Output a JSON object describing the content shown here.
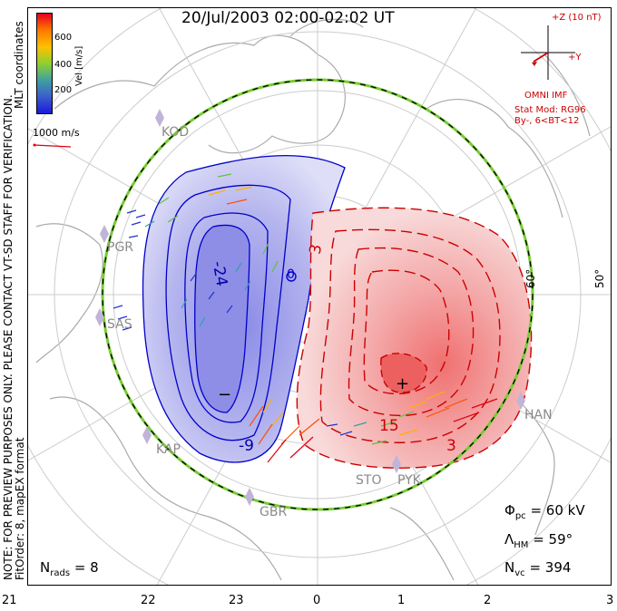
{
  "header": {
    "title": "20/Jul/2003 02:00-02:02 UT"
  },
  "colorbar": {
    "unit_label": "Vel [m/s]",
    "ticks": [
      "600",
      "400",
      "200"
    ],
    "colors": [
      "#e6001e",
      "#ff7800",
      "#ffc000",
      "#8fd030",
      "#40a0a0",
      "#3a5ecc",
      "#1a1adc"
    ]
  },
  "coord_label": "MLT coordinates",
  "scale_vector": {
    "label": "1000 m/s"
  },
  "note": {
    "line1": "NOTE: FOR PREVIEW PURPOSES ONLY. PLEASE CONTACT VT-SD STAFF FOR VERIFICATION.",
    "line2": "FitOrder: 8,  mapEX format"
  },
  "imf": {
    "z_label": "+Z (10 nT)",
    "y_label": "+Y",
    "source": "OMNI IMF",
    "model_line1": "Stat Mod: RG96",
    "model_line2": "By-, 6<BT<12"
  },
  "latitude_labels": {
    "inner": "60°",
    "outer": "50°"
  },
  "mlt_labels": [
    "21",
    "22",
    "23",
    "0",
    "1",
    "2",
    "3"
  ],
  "contour_labels": {
    "neg_main": "-24",
    "neg_small": "-9",
    "neg_min": "−",
    "pos_main": "3",
    "pos_small": "15",
    "pos_low": "3",
    "zero_mark": "0",
    "plus_mark": "+"
  },
  "stations": [
    "KOD",
    "PGR",
    "SAS",
    "KAP",
    "GBR",
    "STO",
    "PYK",
    "HAN"
  ],
  "stats": {
    "phi_pc": {
      "symbol": "Φ",
      "sub": "pc",
      "value": "= 60 kV"
    },
    "lambda_hm": {
      "symbol": "Λ",
      "sub": "HM",
      "value": "= 59°"
    },
    "n_vc": {
      "symbol": "N",
      "sub": "vc",
      "value": "= 394"
    },
    "n_rads": {
      "symbol": "N",
      "sub": "rads",
      "value": "= 8"
    }
  }
}
